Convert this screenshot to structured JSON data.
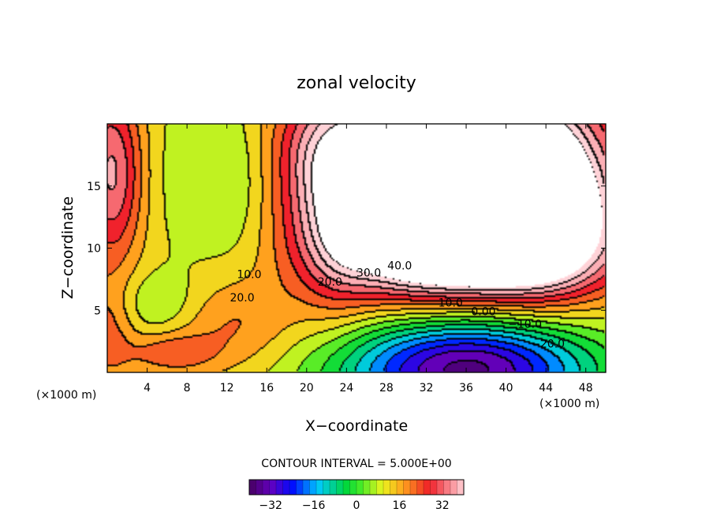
{
  "chart_data": {
    "type": "heatmap",
    "title": "zonal velocity",
    "xlabel": "X−coordinate",
    "ylabel": "Z−coordinate",
    "x_unit_left": "(×1000 m)",
    "x_unit_right": "(×1000 m)",
    "xlim": [
      0,
      50
    ],
    "ylim": [
      0,
      20
    ],
    "xticks": [
      4,
      8,
      12,
      16,
      20,
      24,
      28,
      32,
      36,
      40,
      44,
      48
    ],
    "yticks": [
      5,
      10,
      15
    ],
    "vlim": [
      -40,
      40
    ],
    "white_region_above": 45,
    "contour_interval": 5,
    "contour_labels": [
      {
        "text": "10.0",
        "x": 13.0,
        "y": 7.6
      },
      {
        "text": "20.0",
        "x": 12.3,
        "y": 5.7
      },
      {
        "text": "20.0",
        "x": 21.1,
        "y": 7.0
      },
      {
        "text": "30.0",
        "x": 25.0,
        "y": 7.7
      },
      {
        "text": "40.0",
        "x": 28.1,
        "y": 8.3
      },
      {
        "text": "10.0",
        "x": 33.2,
        "y": 5.3
      },
      {
        "text": "0.00",
        "x": 36.5,
        "y": 4.6
      },
      {
        "text": "−10.0",
        "x": 40.2,
        "y": 3.6
      },
      {
        "text": "−20.0",
        "x": 42.5,
        "y": 2.0
      }
    ],
    "field": [
      {
        "x": 36,
        "y": 2.2,
        "a": 58,
        "sx": 10.0,
        "sy": 2.8
      },
      {
        "x": 34.5,
        "y": 14.5,
        "a": 72,
        "sx": 9.0,
        "sy": 6.5
      },
      {
        "x": 44,
        "y": 13.5,
        "a": 25,
        "sx": 4.5,
        "sy": 5.0
      },
      {
        "x": 38,
        "y": 10,
        "a": 15,
        "sx": 10,
        "sy": 3
      },
      {
        "x": 23,
        "y": 13,
        "a": 10,
        "sx": 2.5,
        "sy": 6
      },
      {
        "x": 0.5,
        "y": 16,
        "a": 24,
        "sx": 2.2,
        "sy": 5
      },
      {
        "x": 0,
        "y": 3,
        "a": 10,
        "sx": 2,
        "sy": 3
      },
      {
        "x": 12.5,
        "y": 3.8,
        "a": 9,
        "sx": 4.5,
        "sy": 2.6
      },
      {
        "x": 6.5,
        "y": 1.5,
        "a": 11,
        "sx": 3.0,
        "sy": 1.1
      },
      {
        "x": 21,
        "y": 18,
        "a": 8,
        "sx": 3,
        "sy": 3
      },
      {
        "x": 13,
        "y": 15,
        "a": -9,
        "sx": 3.0,
        "sy": 5.0
      },
      {
        "x": 5,
        "y": 5.5,
        "a": -8,
        "sx": 3.0,
        "sy": 1.8
      },
      {
        "x": 7.5,
        "y": 16,
        "a": -4,
        "sx": 3,
        "sy": 6
      }
    ],
    "field_base": 12
  },
  "footer": {
    "contour_interval_text": "CONTOUR INTERVAL = 5.000E+00"
  },
  "colorbar": {
    "vmin": -40,
    "vmax": 40,
    "tick_values": [
      -32,
      -16,
      0,
      16,
      32
    ],
    "tick_labels": [
      "−32",
      "−16",
      "0",
      "16",
      "32"
    ]
  }
}
